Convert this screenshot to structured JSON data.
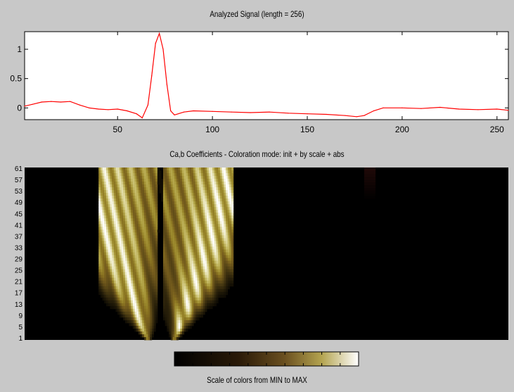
{
  "signal_title": "Analyzed Signal (length = 256)",
  "coef_title": "Ca,b Coefficients - Coloration mode: init + by scale + abs",
  "colorbar_label": "Scale of colors from MIN to MAX",
  "colors": {
    "signal_line": "#ff0000",
    "plot_bg": "#ffffff",
    "figure_bg": "#c8c8c8",
    "colormap_low": "#000000",
    "colormap_high": "#ffffff"
  },
  "chart_data": [
    {
      "type": "line",
      "title": "Analyzed Signal (length = 256)",
      "xlim": [
        1,
        256
      ],
      "ylim": [
        -0.2,
        1.3
      ],
      "xticks": [
        50,
        100,
        150,
        200,
        250
      ],
      "yticks": [
        0,
        0.5,
        1
      ],
      "ytick_labels": [
        "0",
        "0.5",
        "1"
      ],
      "series": [
        {
          "x": [
            1,
            5,
            10,
            15,
            20,
            25,
            30,
            35,
            40,
            45,
            50,
            55,
            60,
            63,
            66,
            68,
            70,
            72,
            74,
            76,
            78,
            80,
            85,
            90,
            100,
            110,
            120,
            130,
            140,
            150,
            160,
            170,
            176,
            180,
            185,
            190,
            200,
            210,
            220,
            230,
            240,
            250,
            256
          ],
          "y": [
            0.03,
            0.06,
            0.1,
            0.11,
            0.1,
            0.11,
            0.05,
            0.0,
            -0.02,
            -0.03,
            -0.02,
            -0.05,
            -0.1,
            -0.17,
            0.05,
            0.55,
            1.1,
            1.27,
            1.0,
            0.4,
            -0.05,
            -0.12,
            -0.07,
            -0.05,
            -0.06,
            -0.07,
            -0.08,
            -0.07,
            -0.09,
            -0.1,
            -0.11,
            -0.13,
            -0.15,
            -0.13,
            -0.05,
            0.0,
            0.0,
            -0.01,
            0.01,
            -0.02,
            -0.03,
            -0.02,
            -0.04
          ]
        }
      ]
    },
    {
      "type": "heatmap",
      "title": "Ca,b Coefficients - Coloration mode: init + by scale + abs",
      "xlim": [
        1,
        256
      ],
      "y_tick_labels": [
        "1",
        "5",
        "9",
        "13",
        "17",
        "21",
        "25",
        "29",
        "33",
        "37",
        "41",
        "45",
        "49",
        "53",
        "57",
        "61"
      ]
    }
  ]
}
